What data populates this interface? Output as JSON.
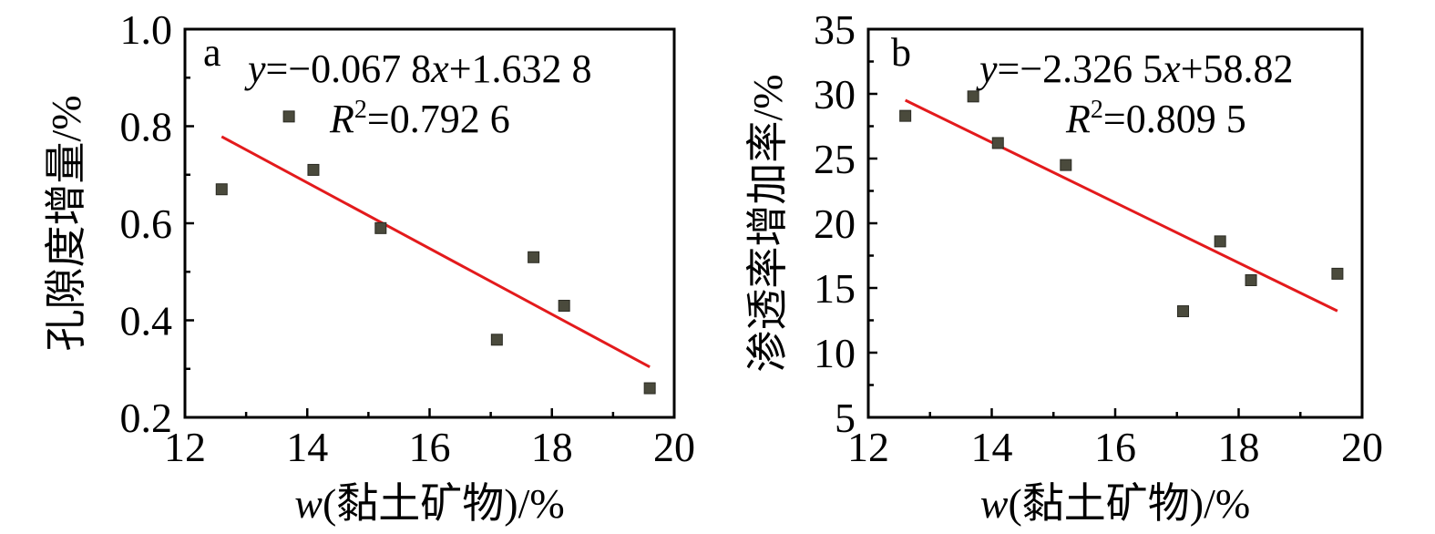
{
  "chart_data": [
    {
      "type": "scatter",
      "panel_label": "a",
      "xlabel_var": "w",
      "xlabel_rest": "(黏土矿物)/%",
      "ylabel": "孔隙度增量/%",
      "xlim": [
        12,
        20
      ],
      "ylim": [
        0.2,
        1.0
      ],
      "xticks": [
        12,
        14,
        16,
        18,
        20
      ],
      "yticks": [
        0.2,
        0.4,
        0.6,
        0.8,
        1.0
      ],
      "ytick_labels": [
        "0.2",
        "0.4",
        "0.6",
        "0.8",
        "1.0"
      ],
      "points": [
        {
          "x": 12.6,
          "y": 0.67
        },
        {
          "x": 13.7,
          "y": 0.82
        },
        {
          "x": 14.1,
          "y": 0.71
        },
        {
          "x": 15.2,
          "y": 0.59
        },
        {
          "x": 17.1,
          "y": 0.36
        },
        {
          "x": 17.7,
          "y": 0.53
        },
        {
          "x": 18.2,
          "y": 0.43
        },
        {
          "x": 19.6,
          "y": 0.26
        }
      ],
      "fit": {
        "slope": -0.0678,
        "intercept": 1.6328,
        "x_range": [
          12.6,
          19.6
        ]
      },
      "equation": {
        "y_var": "y",
        "eq_mid": "=−0.067 8",
        "x_var": "x",
        "eq_end": "+1.632 8"
      },
      "r2": {
        "r_var": "R",
        "sup": "2",
        "value": "=0.792 6"
      }
    },
    {
      "type": "scatter",
      "panel_label": "b",
      "xlabel_var": "w",
      "xlabel_rest": "(黏土矿物)/%",
      "ylabel": "渗透率增加率/%",
      "xlim": [
        12,
        20
      ],
      "ylim": [
        5,
        35
      ],
      "xticks": [
        12,
        14,
        16,
        18,
        20
      ],
      "yticks": [
        5,
        10,
        15,
        20,
        25,
        30,
        35
      ],
      "ytick_labels": [
        "5",
        "10",
        "15",
        "20",
        "25",
        "30",
        "35"
      ],
      "points": [
        {
          "x": 12.6,
          "y": 28.3
        },
        {
          "x": 13.7,
          "y": 29.8
        },
        {
          "x": 14.1,
          "y": 26.2
        },
        {
          "x": 15.2,
          "y": 24.5
        },
        {
          "x": 17.1,
          "y": 13.2
        },
        {
          "x": 17.7,
          "y": 18.6
        },
        {
          "x": 18.2,
          "y": 15.6
        },
        {
          "x": 19.6,
          "y": 16.1
        }
      ],
      "fit": {
        "slope": -2.3265,
        "intercept": 58.82,
        "x_range": [
          12.6,
          19.6
        ]
      },
      "equation": {
        "y_var": "y",
        "eq_mid": "=−2.326 5",
        "x_var": "x",
        "eq_end": "+58.82"
      },
      "r2": {
        "r_var": "R",
        "sup": "2",
        "value": "=0.809 5"
      }
    }
  ]
}
